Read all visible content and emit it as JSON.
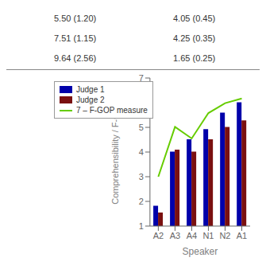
{
  "chart_data": {
    "type": "bar",
    "categories": [
      "A2",
      "A3",
      "A4",
      "N1",
      "N2",
      "A1"
    ],
    "series": [
      {
        "name": "Judge 1",
        "color": "#0000aa",
        "values": [
          1.82,
          4.02,
          4.52,
          4.93,
          5.6,
          6.02
        ]
      },
      {
        "name": "Judge 2",
        "color": "#7a1010",
        "values": [
          1.55,
          4.1,
          4.02,
          4.52,
          5.02,
          5.28
        ]
      },
      {
        "name": "7 – F-GOP measure",
        "color": "#66cc00",
        "type": "line",
        "values": [
          3.0,
          5.02,
          4.55,
          5.58,
          5.98,
          6.17
        ]
      }
    ],
    "xlabel": "Speaker",
    "ylabel": "Comprehensibility / F-GOP",
    "ylim": [
      1,
      7
    ],
    "yticks": [
      1,
      2,
      3,
      4,
      5,
      6,
      7
    ],
    "grid": false,
    "legend": "upper left",
    "annotations": [
      [
        "5.50 (1.20)",
        "4.05 (0.45)"
      ],
      [
        "7.51 (1.15)",
        "4.25 (0.35)"
      ],
      [
        "9.64 (2.56)",
        "1.65 (0.25)"
      ]
    ]
  }
}
